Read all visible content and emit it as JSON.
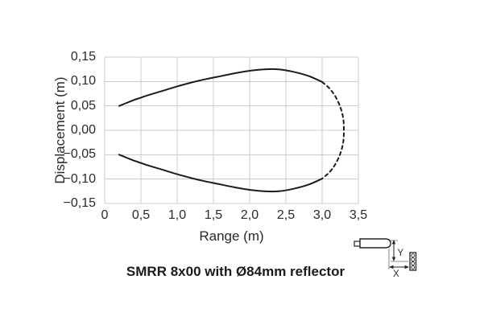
{
  "figure": {
    "caption": "SMRR 8x00 with Ø84mm reflector"
  },
  "chart_data": {
    "type": "line",
    "title": "",
    "xlabel": "Range (m)",
    "ylabel": "Displacement (m)",
    "xlim": [
      0,
      3.5
    ],
    "ylim": [
      -0.15,
      0.15
    ],
    "grid": true,
    "legend_position": "none",
    "x_tick_values": [
      0,
      0.5,
      1.0,
      1.5,
      2.0,
      2.5,
      3.0,
      3.5
    ],
    "x_tick_labels": [
      "0",
      "0,5",
      "1,0",
      "1,5",
      "2,0",
      "2,5",
      "3,0",
      "3,5"
    ],
    "y_tick_values": [
      0.15,
      0.1,
      0.05,
      0.0,
      -0.05,
      -0.1,
      -0.15
    ],
    "y_tick_labels": [
      "0,15",
      "0,10",
      "0,05",
      "0,00",
      "−0,05",
      "−0,10",
      "−0,15"
    ],
    "description": "Closed detection-zone boundary: solid line from 0.2 m to about 3.0 m, dashed closure arc out to about 3.3 m at zero displacement",
    "series": [
      {
        "name": "upper-boundary-solid",
        "style": "solid",
        "points": [
          [
            0.2,
            0.05
          ],
          [
            0.3,
            0.056
          ],
          [
            0.4,
            0.062
          ],
          [
            0.5,
            0.067
          ],
          [
            0.6,
            0.072
          ],
          [
            0.8,
            0.081
          ],
          [
            1.0,
            0.09
          ],
          [
            1.2,
            0.098
          ],
          [
            1.4,
            0.105
          ],
          [
            1.6,
            0.111
          ],
          [
            1.8,
            0.117
          ],
          [
            2.0,
            0.122
          ],
          [
            2.2,
            0.125
          ],
          [
            2.4,
            0.125
          ],
          [
            2.6,
            0.12
          ],
          [
            2.8,
            0.112
          ],
          [
            2.9,
            0.106
          ],
          [
            3.0,
            0.099
          ]
        ]
      },
      {
        "name": "far-closure-dashed",
        "style": "dashed",
        "points": [
          [
            3.0,
            0.099
          ],
          [
            3.1,
            0.086
          ],
          [
            3.18,
            0.07
          ],
          [
            3.25,
            0.048
          ],
          [
            3.29,
            0.025
          ],
          [
            3.3,
            0.0
          ],
          [
            3.29,
            -0.025
          ],
          [
            3.25,
            -0.048
          ],
          [
            3.18,
            -0.07
          ],
          [
            3.1,
            -0.086
          ],
          [
            3.0,
            -0.099
          ]
        ]
      },
      {
        "name": "lower-boundary-solid",
        "style": "solid",
        "points": [
          [
            3.0,
            -0.099
          ],
          [
            2.9,
            -0.106
          ],
          [
            2.8,
            -0.112
          ],
          [
            2.6,
            -0.12
          ],
          [
            2.4,
            -0.125
          ],
          [
            2.2,
            -0.125
          ],
          [
            2.0,
            -0.122
          ],
          [
            1.8,
            -0.117
          ],
          [
            1.6,
            -0.111
          ],
          [
            1.4,
            -0.105
          ],
          [
            1.2,
            -0.098
          ],
          [
            1.0,
            -0.09
          ],
          [
            0.8,
            -0.081
          ],
          [
            0.6,
            -0.072
          ],
          [
            0.5,
            -0.067
          ],
          [
            0.4,
            -0.062
          ],
          [
            0.3,
            -0.056
          ],
          [
            0.2,
            -0.05
          ]
        ]
      }
    ],
    "colors": {
      "line": "#1c1c1c",
      "grid": "#cccccc",
      "text": "#2a2a2a",
      "background": "#ffffff"
    }
  },
  "icon": {
    "meaning": "sensor and reflector alignment sketch",
    "y_label": "Y",
    "x_label": "X"
  }
}
